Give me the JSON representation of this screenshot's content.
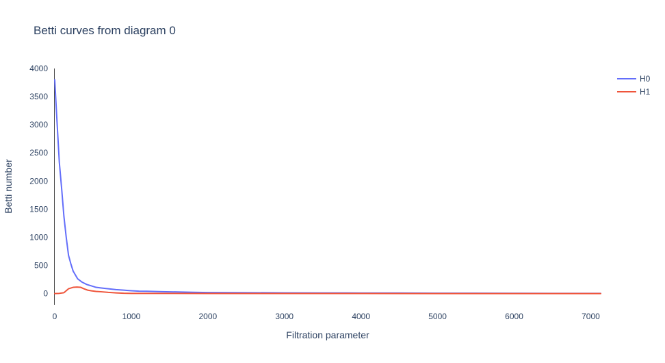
{
  "chart_data": {
    "type": "line",
    "title": "Betti curves from diagram 0",
    "xlabel": "Filtration parameter",
    "ylabel": "Betti number",
    "xlim": [
      0,
      7130
    ],
    "ylim": [
      -200,
      4000
    ],
    "xticks": [
      0,
      1000,
      2000,
      3000,
      4000,
      5000,
      6000,
      7000
    ],
    "yticks": [
      0,
      500,
      1000,
      1500,
      2000,
      2500,
      3000,
      3500,
      4000
    ],
    "grid": false,
    "legend_position": "top-right",
    "series": [
      {
        "name": "H0",
        "color": "#636efa",
        "x": [
          0,
          30,
          60,
          90,
          120,
          150,
          180,
          210,
          240,
          300,
          360,
          420,
          480,
          540,
          600,
          700,
          800,
          900,
          1000,
          1100,
          1200,
          1400,
          1600,
          1800,
          2000,
          2500,
          3000,
          3500,
          4000,
          4500,
          5000,
          5500,
          6000,
          6500,
          7000,
          7130
        ],
        "values": [
          3800,
          3050,
          2330,
          1870,
          1370,
          1000,
          680,
          530,
          400,
          260,
          200,
          160,
          135,
          110,
          100,
          85,
          70,
          60,
          50,
          42,
          40,
          33,
          28,
          22,
          18,
          15,
          12,
          10,
          9,
          8,
          6,
          5,
          4,
          3,
          2,
          2
        ]
      },
      {
        "name": "H1",
        "color": "#ef553b",
        "x": [
          0,
          60,
          120,
          180,
          240,
          290,
          340,
          380,
          430,
          480,
          540,
          600,
          700,
          800,
          900,
          1000,
          1500,
          2000,
          3000,
          4000,
          5000,
          6000,
          7000,
          7130
        ],
        "values": [
          0,
          3,
          15,
          85,
          110,
          115,
          110,
          85,
          60,
          48,
          38,
          32,
          20,
          12,
          5,
          3,
          2,
          1,
          1,
          1,
          0,
          0,
          0,
          0
        ]
      }
    ]
  }
}
